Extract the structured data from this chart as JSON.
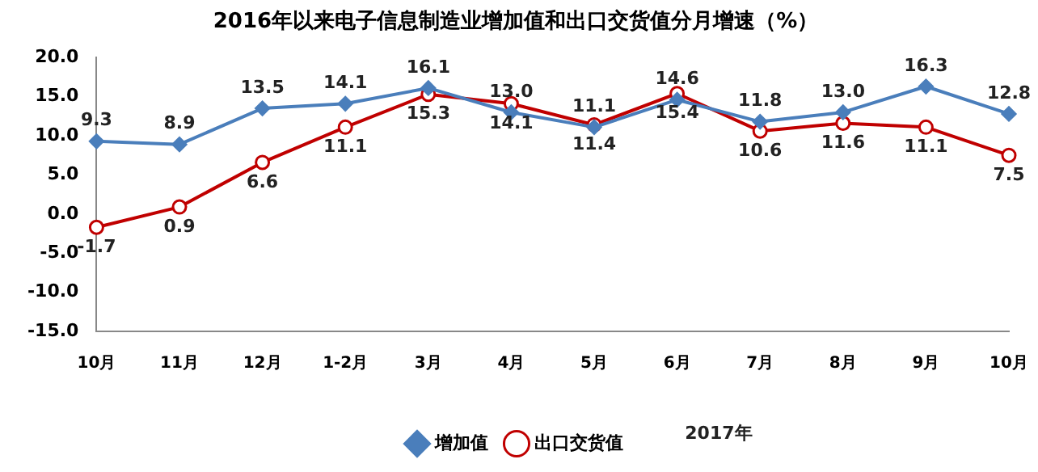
{
  "chart_data": {
    "type": "line",
    "title": "2016年以来电子信息制造业增加值和出口交货值分月增速（%）",
    "categories": [
      "10月",
      "11月",
      "12月",
      "1-2月",
      "3月",
      "4月",
      "5月",
      "6月",
      "7月",
      "8月",
      "9月",
      "10月"
    ],
    "series": [
      {
        "name": "增加值",
        "color": "#4a7ebb",
        "marker": "diamond",
        "values": [
          9.3,
          8.9,
          13.5,
          14.1,
          16.1,
          13.0,
          11.1,
          14.6,
          11.8,
          13.0,
          16.3,
          12.8
        ],
        "value_labels": [
          "9.3",
          "8.9",
          "13.5",
          "14.1",
          "16.1",
          "13.0",
          "11.1",
          "14.6",
          "11.8",
          "13.0",
          "16.3",
          "12.8"
        ]
      },
      {
        "name": "出口交货值",
        "color": "#c00000",
        "marker": "circle",
        "values": [
          -1.7,
          0.9,
          6.6,
          11.1,
          15.3,
          14.1,
          11.4,
          15.4,
          10.6,
          11.6,
          11.1,
          7.5
        ],
        "value_labels": [
          "-1.7",
          "0.9",
          "6.6",
          "11.1",
          "15.3",
          "14.1",
          "11.4",
          "15.4",
          "10.6",
          "11.6",
          "11.1",
          "7.5"
        ]
      }
    ],
    "ylim": [
      -15,
      20
    ],
    "yticks": [
      {
        "value": -15,
        "label": "-15.0"
      },
      {
        "value": -10,
        "label": "-10.0"
      },
      {
        "value": -5,
        "label": "-5.0"
      },
      {
        "value": 0,
        "label": "0.0"
      },
      {
        "value": 5,
        "label": "5.0"
      },
      {
        "value": 10,
        "label": "10.0"
      },
      {
        "value": 15,
        "label": "15.0"
      },
      {
        "value": 20,
        "label": "20.0"
      }
    ],
    "annotations": [
      "2017年"
    ],
    "legend": "bottom",
    "grid": false
  }
}
